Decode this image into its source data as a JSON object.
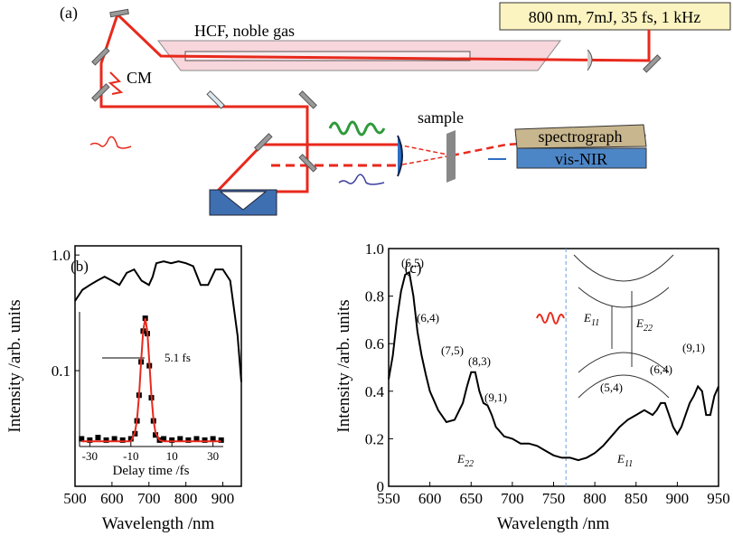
{
  "diagram": {
    "label": "(a)",
    "laser": "800 nm, 7mJ, 35 fs, 1 kHz",
    "fiber": "HCF, noble gas",
    "chirped_mirrors": "CM",
    "sample": "sample",
    "spectrograph": "spectrograph",
    "detector_range": "vis-NIR"
  },
  "chart_data": [
    {
      "type": "line",
      "label": "(b)",
      "x_label": "Wavelength /nm",
      "y_label": "Intensity /arb. units",
      "log_y": true,
      "x": [
        500,
        520,
        540,
        560,
        580,
        600,
        620,
        640,
        660,
        680,
        700,
        710,
        720,
        740,
        760,
        780,
        800,
        820,
        840,
        860,
        880,
        900,
        920,
        940,
        950
      ],
      "series": [
        {
          "color": "#000000",
          "values": [
            0.4,
            0.5,
            0.55,
            0.6,
            0.65,
            0.6,
            0.55,
            0.7,
            0.75,
            0.6,
            0.55,
            0.65,
            0.85,
            0.88,
            0.85,
            0.88,
            0.85,
            0.8,
            0.55,
            0.55,
            0.75,
            0.75,
            0.6,
            0.2,
            0.08
          ]
        }
      ],
      "xlim": [
        500,
        950
      ],
      "ylim": [
        0.01,
        1.2
      ],
      "xticks": [
        500,
        600,
        700,
        800,
        900
      ],
      "yticks": [
        0.1,
        {
          "value": 1,
          "label": "1.0"
        }
      ]
    },
    {
      "type": "line",
      "x_label": "Delay time /fs",
      "annotation": "5.1 fs",
      "x": [
        -34,
        -30,
        -26,
        -22,
        -18,
        -14,
        -10,
        -8,
        -7,
        -6,
        -5,
        -4,
        -3,
        -2,
        -1,
        0,
        1,
        2,
        4,
        6,
        10,
        14,
        18,
        22,
        26,
        30,
        34
      ],
      "series": [
        {
          "color": "#000000",
          "marker": "square",
          "values": [
            0.06,
            0.05,
            0.07,
            0.05,
            0.06,
            0.05,
            0.06,
            0.1,
            0.2,
            0.4,
            0.66,
            0.9,
            1.0,
            0.88,
            0.63,
            0.38,
            0.2,
            0.09,
            0.05,
            0.06,
            0.05,
            0.06,
            0.05,
            0.06,
            0.05,
            0.06,
            0.05
          ]
        },
        {
          "color": "#e8291c",
          "values": [
            0.04,
            0.04,
            0.04,
            0.04,
            0.04,
            0.04,
            0.04,
            0.11,
            0.21,
            0.4,
            0.66,
            0.9,
            1.0,
            0.9,
            0.66,
            0.4,
            0.21,
            0.11,
            0.05,
            0.04,
            0.04,
            0.04,
            0.04,
            0.04,
            0.04,
            0.04,
            0.04
          ]
        }
      ],
      "xlim": [
        -35,
        35
      ],
      "ylim": [
        0,
        1.05
      ],
      "xticks": [
        -30,
        -10,
        10,
        30
      ]
    },
    {
      "type": "line",
      "label": "(c)",
      "x_label": "Wavelength /nm",
      "y_label": "Intensity /arb. units",
      "x": [
        550,
        555,
        560,
        565,
        570,
        575,
        580,
        585,
        590,
        595,
        600,
        610,
        620,
        630,
        640,
        645,
        650,
        655,
        660,
        665,
        670,
        675,
        680,
        690,
        700,
        710,
        720,
        730,
        740,
        750,
        760,
        770,
        780,
        790,
        800,
        810,
        820,
        830,
        840,
        850,
        860,
        870,
        875,
        880,
        885,
        890,
        895,
        900,
        905,
        910,
        915,
        920,
        925,
        930,
        935,
        940,
        945,
        950
      ],
      "series": [
        {
          "color": "#000000",
          "values": [
            0.45,
            0.55,
            0.7,
            0.82,
            0.89,
            0.9,
            0.8,
            0.65,
            0.55,
            0.47,
            0.4,
            0.32,
            0.27,
            0.28,
            0.35,
            0.42,
            0.48,
            0.48,
            0.4,
            0.35,
            0.34,
            0.3,
            0.25,
            0.21,
            0.2,
            0.18,
            0.18,
            0.17,
            0.15,
            0.13,
            0.12,
            0.12,
            0.11,
            0.12,
            0.14,
            0.17,
            0.21,
            0.25,
            0.28,
            0.3,
            0.32,
            0.3,
            0.32,
            0.35,
            0.35,
            0.3,
            0.25,
            0.22,
            0.25,
            0.3,
            0.35,
            0.38,
            0.42,
            0.4,
            0.3,
            0.3,
            0.38,
            0.42
          ]
        }
      ],
      "xlim": [
        550,
        950
      ],
      "ylim": [
        0,
        1.0
      ],
      "xticks": [
        550,
        600,
        650,
        700,
        750,
        800,
        850,
        900,
        950
      ],
      "yticks": [
        0,
        0.2,
        0.4,
        0.6,
        0.8,
        {
          "value": 1,
          "label": "1.0"
        }
      ],
      "divider_x": 765,
      "divider_color": "#6a9fd4",
      "annotations": [
        "(6,5)",
        "(6,4)",
        "(7,5)",
        "(8,3)",
        "(9,1)",
        "(5,4)",
        "(6,4)",
        "(9,1)"
      ],
      "energy_labels": [
        {
          "symbol": "E",
          "subscript": "22"
        },
        {
          "symbol": "E",
          "subscript": "11"
        },
        {
          "symbol": "E",
          "subscript": "11"
        },
        {
          "symbol": "E",
          "subscript": "22"
        }
      ]
    }
  ]
}
